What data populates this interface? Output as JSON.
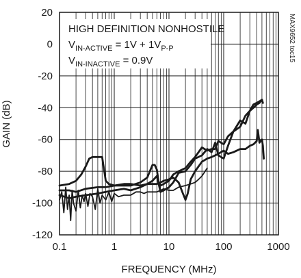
{
  "chart_data": {
    "type": "line",
    "title": "",
    "xlabel": "FREQUENCY (MHz)",
    "ylabel": "GAIN (dB)",
    "x_scale": "log",
    "xlim": [
      0.1,
      1000
    ],
    "ylim": [
      -120,
      20
    ],
    "grid": true,
    "x_ticks": [
      "0.1",
      "1",
      "10",
      "100",
      "1000"
    ],
    "y_ticks": [
      "20",
      "0",
      "-20",
      "-40",
      "-60",
      "-80",
      "-100",
      "-120"
    ],
    "annotation": {
      "line1": "HIGH DEFINITION NONHOSTILE",
      "line2_main": "V",
      "line2_sub": "IN-ACTIVE",
      "line2_mid": " = 1V + 1V",
      "line2_sub2": "P-P",
      "line3_main": "V",
      "line3_sub": "IN-INACTIVE",
      "line3_end": " = 0.9V"
    },
    "watermark": "MAX9652 toc15",
    "series": [
      {
        "x": [
          0.1,
          0.15,
          0.2,
          0.25,
          0.3,
          0.35,
          0.4,
          0.5,
          0.6,
          0.7,
          0.8,
          1,
          1.5,
          2,
          3,
          4,
          5,
          6,
          6.5,
          7,
          8,
          10,
          12,
          15,
          20,
          25,
          30,
          40,
          50,
          60,
          70,
          80,
          100,
          120,
          150,
          200,
          250,
          300,
          350,
          400,
          450,
          500,
          520
        ],
        "y": [
          -89,
          -88,
          -86,
          -82,
          -77,
          -72,
          -71,
          -71,
          -71,
          -86,
          -88,
          -89,
          -88,
          -88,
          -89,
          -88,
          -86,
          -83,
          -88,
          -93,
          -92,
          -90,
          -87,
          -81,
          -80,
          -76,
          -72,
          -70,
          -66,
          -68,
          -62,
          -70,
          -72,
          -64,
          -55,
          -48,
          -50,
          -42,
          -40,
          -38,
          -37,
          -35,
          -37
        ]
      },
      {
        "x": [
          0.1,
          0.15,
          0.2,
          0.3,
          0.5,
          0.7,
          1,
          1.5,
          2,
          3,
          4,
          5,
          5.5,
          6,
          6.5,
          7,
          8,
          10,
          12,
          15,
          20,
          25,
          30,
          40,
          50,
          60,
          70,
          80,
          100,
          120,
          150,
          200,
          250,
          300,
          350,
          400,
          450,
          500
        ],
        "y": [
          -92,
          -92,
          -93,
          -91,
          -90,
          -90,
          -89,
          -89,
          -89,
          -87,
          -84,
          -76,
          -76,
          -79,
          -87,
          -89,
          -88,
          -86,
          -82,
          -80,
          -78,
          -74,
          -71,
          -65,
          -67,
          -66,
          -66,
          -61,
          -63,
          -58,
          -55,
          -52,
          -45,
          -42,
          -38,
          -37,
          -36,
          -35
        ]
      },
      {
        "x": [
          0.1,
          0.15,
          0.2,
          0.3,
          0.5,
          0.7,
          1,
          1.5,
          2,
          3,
          4,
          5,
          6,
          7,
          8,
          10,
          12,
          15,
          18,
          20,
          22,
          25,
          30,
          40,
          50,
          60,
          70,
          80,
          100,
          120,
          150,
          200,
          250,
          300,
          350,
          400,
          420,
          450,
          470,
          500,
          520,
          540
        ],
        "y": [
          -95,
          -97,
          -96,
          -95,
          -94,
          -93,
          -92,
          -91,
          -92,
          -90,
          -88,
          -88,
          -88,
          -87,
          -86,
          -85,
          -84,
          -87,
          -94,
          -98,
          -94,
          -85,
          -80,
          -74,
          -72,
          -71,
          -70,
          -69,
          -67,
          -69,
          -68,
          -66,
          -66,
          -64,
          -63,
          -61,
          -54,
          -62,
          -61,
          -60,
          -64,
          -72
        ]
      },
      {
        "x": [
          0.1,
          0.11,
          0.12,
          0.13,
          0.14,
          0.15,
          0.16,
          0.17,
          0.18,
          0.2,
          0.22,
          0.24,
          0.26,
          0.28,
          0.3,
          0.33,
          0.36,
          0.4,
          0.45,
          0.5,
          0.55,
          0.6,
          0.7,
          0.8,
          0.9,
          1,
          1.2,
          1.5,
          2,
          2.5,
          3,
          3.5,
          4,
          5,
          6,
          7,
          8,
          10,
          12,
          15,
          20,
          25,
          30,
          35,
          40,
          50
        ],
        "y": [
          -98,
          -93,
          -106,
          -90,
          -104,
          -95,
          -111,
          -92,
          -100,
          -105,
          -92,
          -103,
          -95,
          -99,
          -94,
          -102,
          -94,
          -96,
          -104,
          -91,
          -100,
          -95,
          -98,
          -93,
          -99,
          -94,
          -96,
          -95,
          -95,
          -93,
          -93,
          -94,
          -93,
          -93,
          -93,
          -92,
          -91,
          -92,
          -92,
          -90,
          -89,
          -88,
          -87,
          -85,
          -83,
          -78
        ]
      }
    ]
  }
}
